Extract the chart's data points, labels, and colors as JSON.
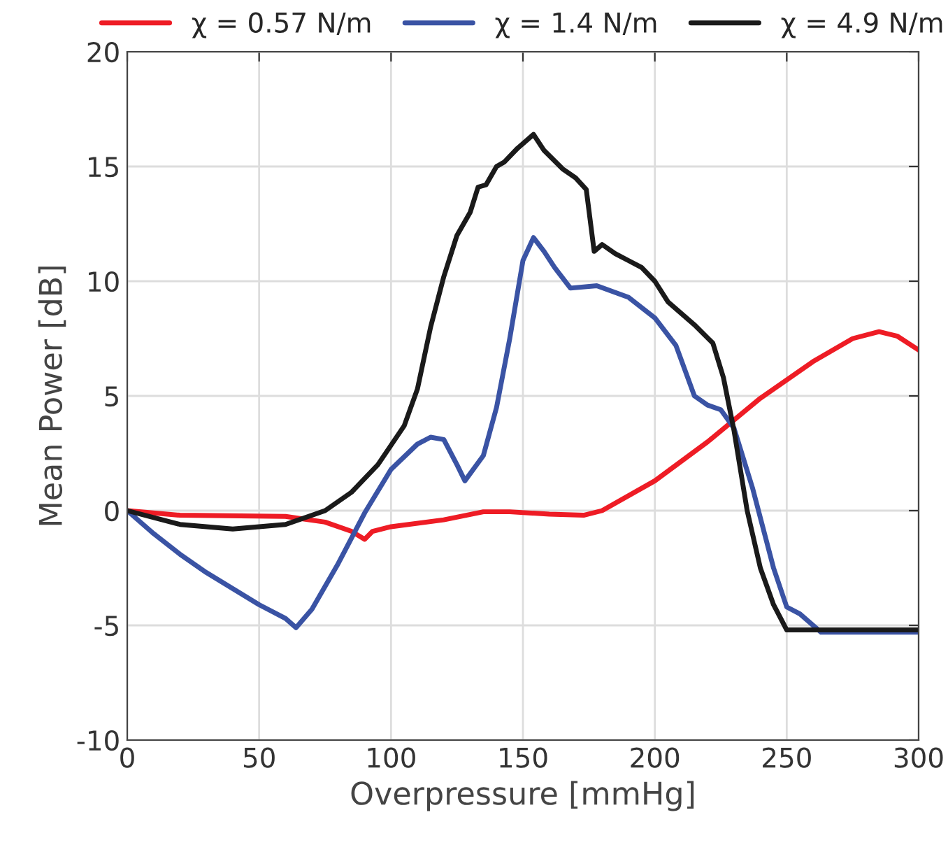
{
  "chart_data": {
    "type": "line",
    "xlabel": "Overpressure [mmHg]",
    "ylabel": "Mean Power [dB]",
    "xlim": [
      0,
      300
    ],
    "xticks": [
      0,
      50,
      100,
      150,
      200,
      250,
      300
    ],
    "ylim": [
      -10,
      20
    ],
    "yticks": [
      -10,
      -5,
      0,
      5,
      10,
      15,
      20
    ],
    "grid": true,
    "legend": "top",
    "marker": "none",
    "line_style": "solid",
    "series": [
      {
        "name": "χ = 0.57 N/m",
        "color": "#ee1c25",
        "x": [
          0,
          20,
          60,
          75,
          85,
          90,
          93,
          100,
          120,
          135,
          145,
          160,
          173,
          180,
          200,
          220,
          240,
          260,
          275,
          285,
          292,
          300
        ],
        "values": [
          0,
          -0.2,
          -0.25,
          -0.5,
          -0.9,
          -1.25,
          -0.9,
          -0.7,
          -0.4,
          -0.05,
          -0.05,
          -0.15,
          -0.2,
          0,
          1.3,
          3.0,
          4.9,
          6.5,
          7.5,
          7.8,
          7.6,
          7.0
        ]
      },
      {
        "name": "χ = 1.4 N/m",
        "color": "#3a53a4",
        "x": [
          0,
          10,
          20,
          30,
          40,
          50,
          60,
          64,
          70,
          80,
          90,
          100,
          110,
          115,
          120,
          125,
          128,
          135,
          140,
          145,
          150,
          154,
          158,
          162,
          168,
          178,
          190,
          200,
          208,
          215,
          220,
          225,
          230,
          237,
          245,
          250,
          255,
          263,
          300
        ],
        "values": [
          0,
          -1,
          -1.9,
          -2.7,
          -3.4,
          -4.1,
          -4.7,
          -5.1,
          -4.3,
          -2.3,
          -0.1,
          1.8,
          2.9,
          3.2,
          3.1,
          2.0,
          1.3,
          2.4,
          4.5,
          7.5,
          10.9,
          11.9,
          11.3,
          10.6,
          9.7,
          9.8,
          9.3,
          8.4,
          7.2,
          5.0,
          4.6,
          4.4,
          3.6,
          1.0,
          -2.5,
          -4.2,
          -4.5,
          -5.3,
          -5.3
        ]
      },
      {
        "name": "χ = 4.9 N/m",
        "color": "#1a1a1a",
        "x": [
          0,
          20,
          40,
          60,
          75,
          85,
          95,
          105,
          110,
          115,
          120,
          125,
          130,
          133,
          136,
          140,
          143,
          148,
          154,
          158,
          165,
          170,
          174,
          177,
          180,
          185,
          190,
          195,
          200,
          205,
          215,
          222,
          226,
          230,
          235,
          240,
          245,
          250,
          300
        ],
        "values": [
          0,
          -0.6,
          -0.8,
          -0.6,
          0,
          0.8,
          2.0,
          3.7,
          5.3,
          8.0,
          10.2,
          12.0,
          13.0,
          14.1,
          14.2,
          15.0,
          15.2,
          15.8,
          16.4,
          15.7,
          14.9,
          14.5,
          14.0,
          11.3,
          11.6,
          11.2,
          10.9,
          10.6,
          10.0,
          9.1,
          8.1,
          7.3,
          5.8,
          3.5,
          0,
          -2.5,
          -4.1,
          -5.2,
          -5.2
        ]
      }
    ]
  }
}
